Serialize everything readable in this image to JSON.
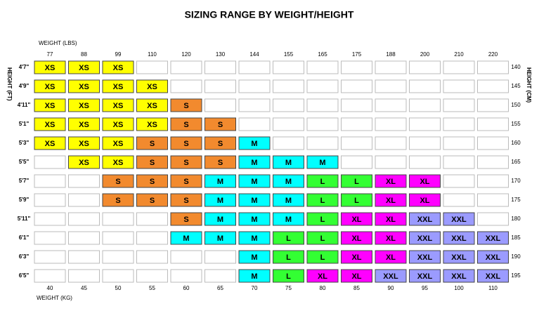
{
  "title": "SIZING RANGE BY WEIGHT/HEIGHT",
  "top_axis": {
    "label": "WEIGHT (LBS)",
    "ticks": [
      "77",
      "88",
      "99",
      "110",
      "120",
      "130",
      "144",
      "155",
      "165",
      "175",
      "188",
      "200",
      "210",
      "220"
    ]
  },
  "bottom_axis": {
    "label": "WEIGHT (KG)",
    "ticks": [
      "40",
      "45",
      "50",
      "55",
      "60",
      "65",
      "70",
      "75",
      "80",
      "85",
      "90",
      "95",
      "100",
      "110"
    ]
  },
  "left_axis": {
    "label": "HEIGHT (FT)",
    "ticks": [
      "4'7\"",
      "4'9\"",
      "4'11\"",
      "5'1\"",
      "5'3\"",
      "5'5\"",
      "5'7\"",
      "5'9\"",
      "5'11\"",
      "6'1\"",
      "6'3\"",
      "6'5\""
    ]
  },
  "right_axis": {
    "label": "HEIGHT (CM)",
    "ticks": [
      "140",
      "145",
      "150",
      "155",
      "160",
      "165",
      "170",
      "175",
      "180",
      "185",
      "190",
      "195"
    ]
  },
  "colors": {
    "XS": "#ffff00",
    "S": "#f28a2e",
    "M": "#00ffff",
    "L": "#33ff33",
    "XL": "#ff00ff",
    "XXL": "#9b9bff"
  },
  "table": {
    "rows": [
      [
        "XS",
        "XS",
        "XS",
        null,
        null,
        null,
        null,
        null,
        null,
        null,
        null,
        null,
        null,
        null
      ],
      [
        "XS",
        "XS",
        "XS",
        "XS",
        null,
        null,
        null,
        null,
        null,
        null,
        null,
        null,
        null,
        null
      ],
      [
        "XS",
        "XS",
        "XS",
        "XS",
        "S",
        null,
        null,
        null,
        null,
        null,
        null,
        null,
        null,
        null
      ],
      [
        "XS",
        "XS",
        "XS",
        "XS",
        "S",
        "S",
        null,
        null,
        null,
        null,
        null,
        null,
        null,
        null
      ],
      [
        "XS",
        "XS",
        "XS",
        "S",
        "S",
        "S",
        "M",
        null,
        null,
        null,
        null,
        null,
        null,
        null
      ],
      [
        null,
        "XS",
        "XS",
        "S",
        "S",
        "S",
        "M",
        "M",
        "M",
        null,
        null,
        null,
        null,
        null
      ],
      [
        null,
        null,
        "S",
        "S",
        "S",
        "M",
        "M",
        "M",
        "L",
        "L",
        "XL",
        "XL",
        null,
        null
      ],
      [
        null,
        null,
        "S",
        "S",
        "S",
        "M",
        "M",
        "M",
        "L",
        "L",
        "XL",
        "XL",
        null,
        null
      ],
      [
        null,
        null,
        null,
        null,
        "S",
        "M",
        "M",
        "M",
        "L",
        "XL",
        "XL",
        "XXL",
        "XXL",
        null
      ],
      [
        null,
        null,
        null,
        null,
        "M",
        "M",
        "M",
        "L",
        "L",
        "XL",
        "XL",
        "XXL",
        "XXL",
        "XXL"
      ],
      [
        null,
        null,
        null,
        null,
        null,
        null,
        "M",
        "L",
        "L",
        "XL",
        "XL",
        "XXL",
        "XXL",
        "XXL"
      ],
      [
        null,
        null,
        null,
        null,
        null,
        null,
        "M",
        "L",
        "XL",
        "XL",
        "XXL",
        "XXL",
        "XXL",
        "XXL"
      ]
    ]
  }
}
